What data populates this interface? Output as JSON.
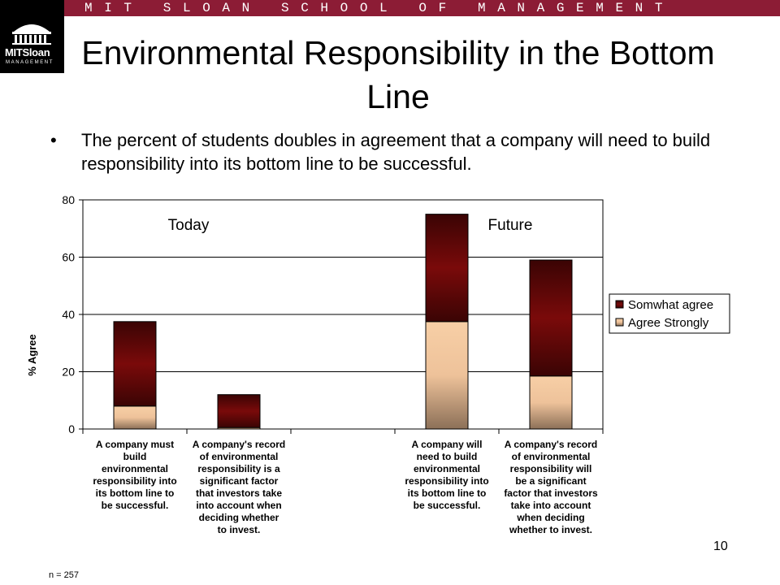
{
  "header": {
    "banner_text": "MIT SLOAN SCHOOL OF MANAGEMENT",
    "logo_text": "MITSloan",
    "logo_subtext": "MANAGEMENT"
  },
  "slide": {
    "title": "Environmental Responsibility in the Bottom Line",
    "bullet": "The percent of students doubles in agreement that a company will need to build responsibility into its bottom line to be successful.",
    "page_number": "10",
    "footnote": "n = 257"
  },
  "colors": {
    "banner": "#8c1c35",
    "somewhat_agree": "#7a0a0a",
    "agree_strongly": "#f5c8a0"
  },
  "chart_data": {
    "type": "bar",
    "stacked": true,
    "categories": [
      "A company must build environmental responsibility into its bottom line to be successful.",
      "A company's record of environmental responsibility is a significant factor that investors take into account when deciding whether to invest.",
      "",
      "A company will need to build environmental responsibility into its bottom line to be successful.",
      "A company's record of environmental responsibility will be a significant factor that investors take into account when deciding whether to invest."
    ],
    "category_lines": [
      [
        "A company must",
        "build",
        "environmental",
        "responsibility into",
        "its bottom line to",
        "be successful."
      ],
      [
        "A company's record",
        "of environmental",
        "responsibility is a",
        "significant factor",
        "that investors take",
        "into account when",
        "deciding whether",
        "to invest."
      ],
      [],
      [
        "A company will",
        "need to build",
        "environmental",
        "responsibility into",
        "its bottom line to",
        "be successful."
      ],
      [
        "A company's record",
        "of environmental",
        "responsibility will",
        "be a significant",
        "factor that investors",
        "take into account",
        "when deciding",
        "whether to invest."
      ]
    ],
    "series": [
      {
        "name": "Agree Strongly",
        "values": [
          8,
          0.5,
          null,
          37.5,
          18.5
        ],
        "color": "#f5c8a0"
      },
      {
        "name": "Somwhat agree",
        "values": [
          29.5,
          11.5,
          null,
          37.5,
          40.5
        ],
        "color": "#7a0a0a"
      }
    ],
    "ylabel": "% Agree",
    "ylim": [
      0,
      80
    ],
    "yticks": [
      0,
      20,
      40,
      60,
      80
    ],
    "grid": true,
    "legend_position": "right",
    "annotations": [
      "Today",
      "Future"
    ]
  }
}
